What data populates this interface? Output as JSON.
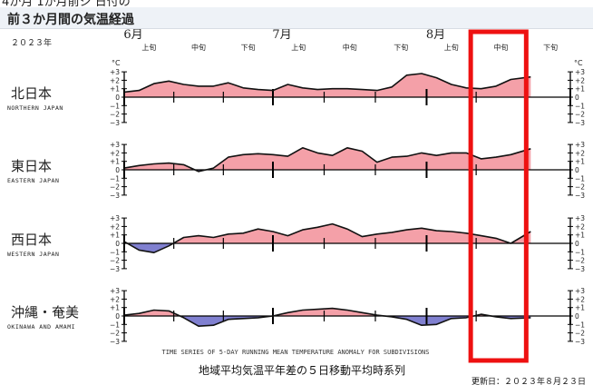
{
  "top_text": "4か月 1か月前ジ 日付の",
  "header_title": "前３か月間の気温経過",
  "chart_data": {
    "type": "area",
    "year_label": "２０２３年",
    "months": [
      {
        "label": "6月",
        "dekads": [
          "上旬",
          "中旬",
          "下旬"
        ]
      },
      {
        "label": "7月",
        "dekads": [
          "上旬",
          "中旬",
          "下旬"
        ]
      },
      {
        "label": "8月",
        "dekads": [
          "上旬",
          "中旬",
          "下旬"
        ]
      }
    ],
    "unit_label": "°C",
    "y_ticks": [
      "+3",
      "+2",
      "+1",
      "0",
      "−1",
      "−2",
      "−3"
    ],
    "ylim": [
      -3,
      3
    ],
    "x_extent_days": [
      1,
      91
    ],
    "data_end_day": 83,
    "positive_color": "#f4a0a8",
    "negative_color": "#8080d0",
    "highlight_color": "#ee1111",
    "highlighted_dekad": {
      "month": "8月",
      "dekad": "中旬",
      "day_range": [
        72,
        81
      ]
    },
    "series": [
      {
        "name": "北日本",
        "name_en": "NORTHERN JAPAN",
        "x": [
          1,
          4,
          7,
          10,
          13,
          16,
          19,
          22,
          25,
          28,
          31,
          34,
          37,
          40,
          43,
          46,
          49,
          52,
          55,
          58,
          61,
          64,
          67,
          70,
          73,
          76,
          79,
          83
        ],
        "y": [
          0.6,
          0.8,
          1.6,
          1.9,
          1.5,
          1.3,
          1.3,
          1.7,
          1.1,
          0.9,
          0.8,
          1.5,
          1.1,
          0.9,
          1.0,
          1.0,
          0.9,
          0.8,
          1.2,
          2.6,
          2.8,
          2.3,
          1.5,
          1.1,
          1.0,
          1.3,
          2.1,
          2.4
        ]
      },
      {
        "name": "東日本",
        "name_en": "EASTERN JAPAN",
        "x": [
          1,
          4,
          7,
          10,
          13,
          16,
          19,
          22,
          25,
          28,
          31,
          34,
          37,
          40,
          43,
          46,
          49,
          52,
          55,
          58,
          61,
          64,
          67,
          70,
          73,
          76,
          79,
          83
        ],
        "y": [
          0.2,
          0.5,
          0.7,
          0.8,
          0.6,
          -0.2,
          0.2,
          1.5,
          1.8,
          1.9,
          1.8,
          1.6,
          2.6,
          2.0,
          1.7,
          2.6,
          2.2,
          0.9,
          1.5,
          1.6,
          2.0,
          1.7,
          2.0,
          2.0,
          1.3,
          1.5,
          1.8,
          2.5
        ]
      },
      {
        "name": "西日本",
        "name_en": "WESTERN JAPAN",
        "x": [
          1,
          4,
          7,
          10,
          13,
          16,
          19,
          22,
          25,
          28,
          31,
          34,
          37,
          40,
          43,
          46,
          49,
          52,
          55,
          58,
          61,
          64,
          67,
          70,
          73,
          76,
          79,
          83
        ],
        "y": [
          0.2,
          -0.8,
          -1.1,
          -0.3,
          0.7,
          0.9,
          0.7,
          1.1,
          1.2,
          1.7,
          1.4,
          0.9,
          1.6,
          1.9,
          2.3,
          1.7,
          0.8,
          1.1,
          1.3,
          1.6,
          1.8,
          1.5,
          1.4,
          1.2,
          0.9,
          0.6,
          0.0,
          1.4
        ]
      },
      {
        "name": "沖縄・奄美",
        "name_en": "OKINAWA AND AMAMI",
        "x": [
          1,
          4,
          7,
          10,
          13,
          16,
          19,
          22,
          25,
          28,
          31,
          34,
          37,
          40,
          43,
          46,
          49,
          52,
          55,
          58,
          61,
          64,
          67,
          70,
          73,
          76,
          79,
          83
        ],
        "y": [
          0.1,
          0.3,
          0.7,
          0.6,
          -0.2,
          -1.2,
          -1.1,
          -0.4,
          -0.3,
          -0.2,
          0.0,
          0.4,
          0.7,
          0.8,
          0.9,
          0.7,
          0.4,
          0.1,
          -0.1,
          -0.4,
          -1.1,
          -1.0,
          -0.3,
          -0.2,
          0.2,
          -0.1,
          -0.3,
          -0.2
        ]
      }
    ],
    "caption_en": "TIME SERIES OF 5-DAY RUNNING MEAN TEMPERATURE ANOMALY FOR SUBDIVISIONS",
    "caption_jp": "地域平均気温平年差の５日移動平均時系列",
    "updated": "更新日：２０２３年８月２３日"
  }
}
